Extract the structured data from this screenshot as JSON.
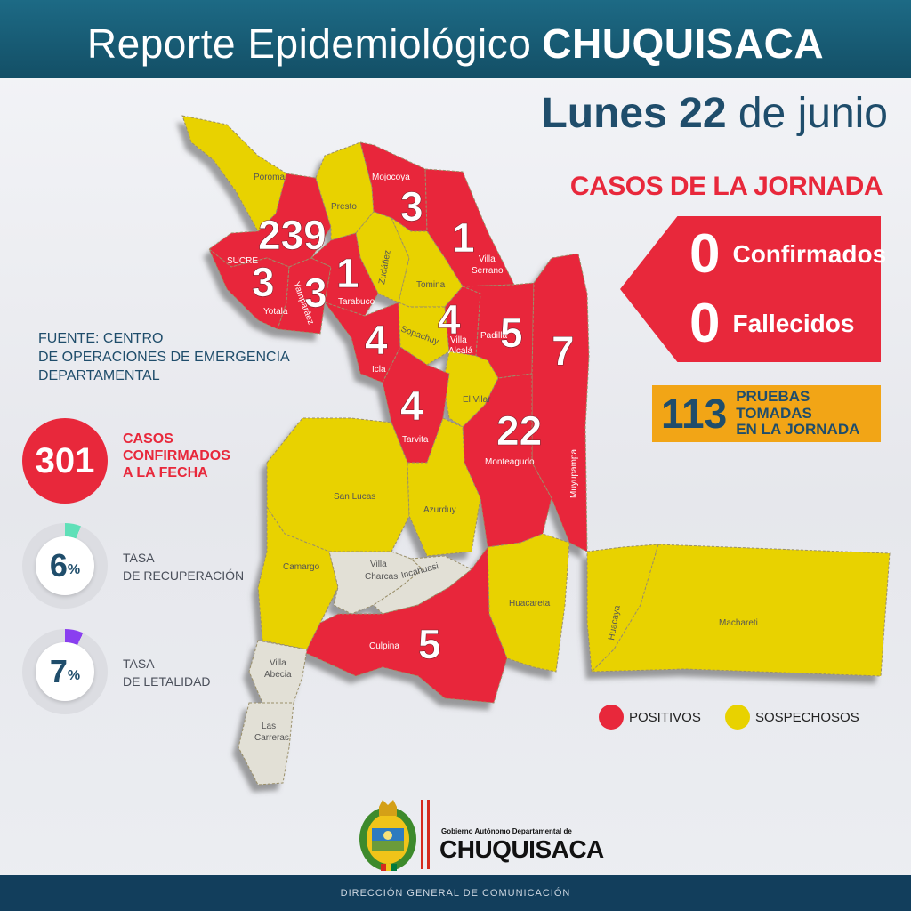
{
  "header": {
    "title_prefix": "Reporte Epidemiológico",
    "title_region": "CHUQUISACA"
  },
  "date": {
    "weekday_day": "Lunes 22",
    "month": "de junio"
  },
  "jornada": {
    "title": "CASOS DE LA JORNADA",
    "confirmed_value": "0",
    "confirmed_label": "Confirmados",
    "deaths_value": "0",
    "deaths_label": "Fallecidos",
    "tests_value": "113",
    "tests_label_line1": "PRUEBAS TOMADAS",
    "tests_label_line2": "EN LA JORNADA"
  },
  "source": {
    "text": "FUENTE: CENTRO\nDE OPERACIONES DE EMERGENCIA\nDEPARTAMENTAL"
  },
  "totals": {
    "confirmed_value": "301",
    "confirmed_label": "CASOS\nCONFIRMADOS\nA LA FECHA",
    "recovery_value": "6",
    "recovery_fraction": 0.06,
    "recovery_label": "TASA\nDE RECUPERACIÓN",
    "lethality_value": "7",
    "lethality_fraction": 0.07,
    "lethality_label": "TASA\nDE LETALIDAD",
    "percent_sign": "%"
  },
  "map": {
    "municipalities": {
      "poroma": "Poroma",
      "presto": "Presto",
      "mojocoya": "Mojocoya",
      "zudanez": "Zudáñez",
      "villa_serrano_1": "Villa",
      "villa_serrano_2": "Serrano",
      "sucre": "SUCRE",
      "tomina": "Tomina",
      "yotala": "Yotala",
      "yamparaez": "Yamparáez",
      "tarabuco": "Tarabuco",
      "sopachuy": "Sopachuy",
      "villa_alcala_1": "Villa",
      "villa_alcala_2": "Alcalá",
      "padilla": "Padilla",
      "icla": "Icla",
      "el_vilar": "El Vilar",
      "tarvita": "Tarvita",
      "monteagudo": "Monteagudo",
      "muyupampa": "Muyupampa",
      "san_lucas": "San Lucas",
      "azurduy": "Azurduy",
      "villa_charcas_1": "Villa",
      "villa_charcas_2": "Charcas",
      "incahuasi": "Incahuasi",
      "camargo": "Camargo",
      "huacareta": "Huacareta",
      "huacaya": "Huacaya",
      "machareti": "Machareti",
      "culpina": "Culpina",
      "villa_abecia_1": "Villa",
      "villa_abecia_2": "Abecia",
      "las_carreras_1": "Las",
      "las_carreras_2": "Carreras"
    },
    "counts": {
      "sucre": "239",
      "mojocoya": "3",
      "villa_serrano": "1",
      "yotala": "3",
      "yamparaez": "3",
      "tarabuco": "1",
      "icla": "4",
      "villa_alcala": "4",
      "padilla": "5",
      "muyupampa": "7",
      "tarvita": "4",
      "monteagudo": "22",
      "culpina": "5"
    },
    "colors": {
      "positive": "#e8283b",
      "suspect": "#e8d200",
      "none": "#e2e0d6"
    }
  },
  "legend": {
    "positive_label": "POSITIVOS",
    "suspect_label": "SOSPECHOSOS"
  },
  "logo": {
    "small_text": "Gobierno Autónomo Departamental de",
    "big_text": "CHUQUISACA"
  },
  "footer": {
    "text": "DIRECCIÓN GENERAL DE COMUNICACIÓN"
  }
}
